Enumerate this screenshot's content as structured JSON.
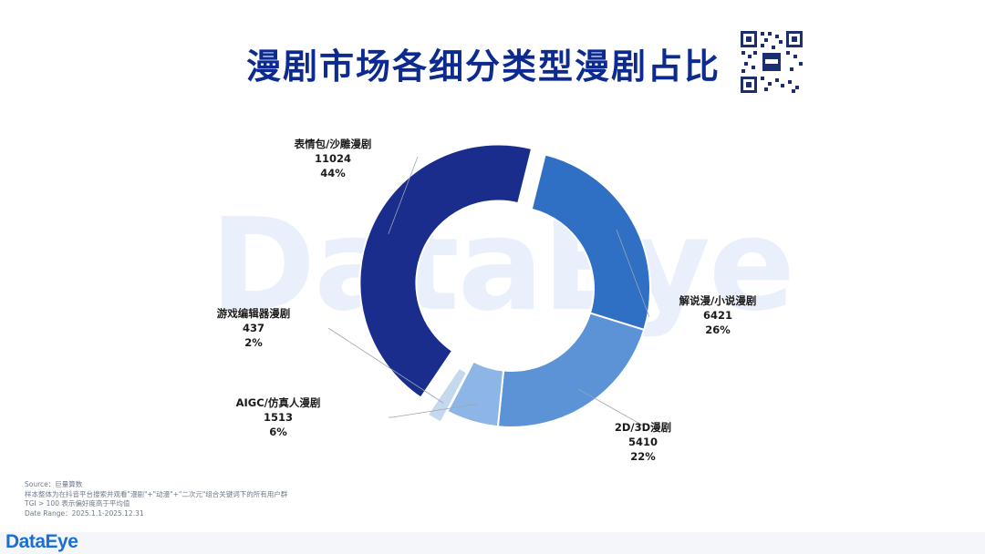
{
  "title": "漫剧市场各细分类型漫剧占比",
  "watermark": "DataEye",
  "chart_data": {
    "type": "pie",
    "donut": true,
    "title": "漫剧市场各细分类型漫剧占比",
    "categories": [
      "表情包/沙雕漫剧",
      "解说漫/小说漫剧",
      "2D/3D漫剧",
      "AIGC/仿真人漫剧",
      "游戏编辑器漫剧"
    ],
    "values": [
      11024,
      6421,
      5410,
      1513,
      437
    ],
    "percent_labels": [
      "44%",
      "26%",
      "22%",
      "6%",
      "2%"
    ],
    "colors": [
      "#1a2c8c",
      "#2f6fc4",
      "#5b93d6",
      "#8db6e6",
      "#c5d8ee"
    ],
    "exploded": [
      "表情包/沙雕漫剧",
      "游戏编辑器漫剧"
    ]
  },
  "labels": [
    {
      "name": "表情包/沙雕漫剧",
      "value": "11024",
      "pct": "44%"
    },
    {
      "name": "解说漫/小说漫剧",
      "value": "6421",
      "pct": "26%"
    },
    {
      "name": "2D/3D漫剧",
      "value": "5410",
      "pct": "22%"
    },
    {
      "name": "AIGC/仿真人漫剧",
      "value": "1513",
      "pct": "6%"
    },
    {
      "name": "游戏编辑器漫剧",
      "value": "437",
      "pct": "2%"
    }
  ],
  "source_lines": [
    "Source：巨量算数",
    "样本整体为在抖音平台搜索并观看\"漫剧\"+\"动漫\"+\"二次元\"组合关键词下的所有用户群",
    "TGI > 100 表示偏好度高于平均值",
    "Date Range：2025.1.1-2025.12.31"
  ],
  "logo": "DataEye"
}
